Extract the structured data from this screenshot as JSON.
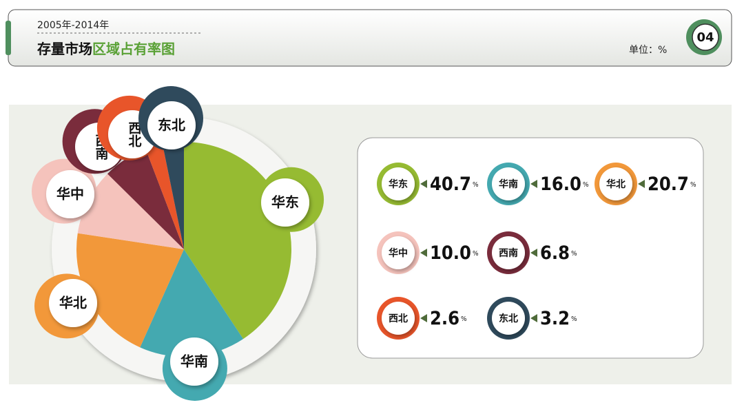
{
  "chart_data": {
    "type": "pie",
    "period": "2005年-2014年",
    "title_part1": "存量市场",
    "title_part2": "区域占有率图",
    "unit_label": "单位：%",
    "page_number": "04",
    "categories": [
      "华东",
      "华南",
      "华北",
      "华中",
      "西南",
      "西北",
      "东北"
    ],
    "values": [
      40.7,
      16.0,
      20.7,
      10.0,
      6.8,
      2.6,
      3.2
    ],
    "value_labels": [
      "40.7",
      "16.0",
      "20.7",
      "10.0",
      "6.8",
      "2.6",
      "3.2"
    ],
    "value_suffix": "%",
    "colors": [
      "#96bb32",
      "#44a9b0",
      "#f2983a",
      "#f5c3bc",
      "#7a2c3c",
      "#e8552a",
      "#2f4a5c"
    ]
  }
}
